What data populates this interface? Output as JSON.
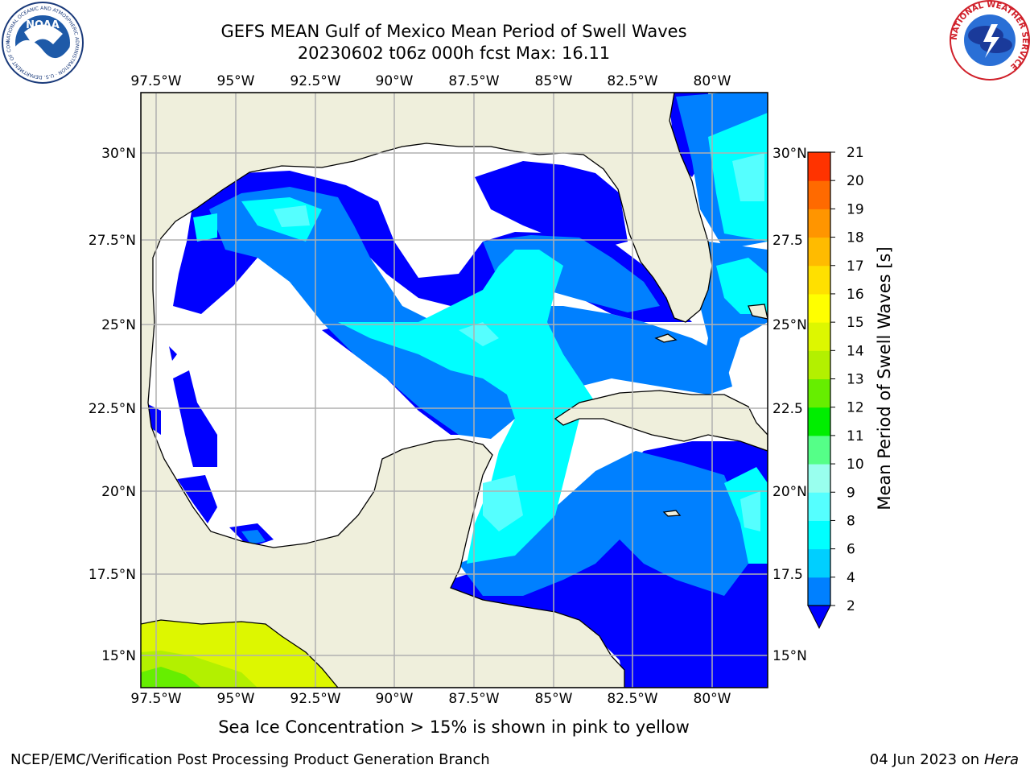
{
  "title_line1": "GEFS MEAN Gulf of Mexico Mean Period of Swell Waves",
  "title_line2": "20230602 t06z 000h fcst   Max: 16.11",
  "lon_labels": [
    "97.5°W",
    "95°W",
    "92.5°W",
    "90°W",
    "87.5°W",
    "85°W",
    "82.5°W",
    "80°W"
  ],
  "lat_labels_left": [
    "30°N",
    "27.5°N",
    "25°N",
    "22.5°N",
    "20°N",
    "17.5°N",
    "15°N"
  ],
  "lat_labels_right": [
    "30°N",
    "27.5",
    "25°N",
    "22.5",
    "20°N",
    "17.5",
    "15°N"
  ],
  "colorbar": {
    "label": "Mean Period of Swell Waves [s]",
    "ticks": [
      "2",
      "4",
      "6",
      "8",
      "9",
      "10",
      "11",
      "12",
      "13",
      "14",
      "15",
      "16",
      "17",
      "18",
      "19",
      "20",
      "21"
    ],
    "colors": [
      "#0080ff",
      "#00cfff",
      "#00ffff",
      "#55ffff",
      "#99ffee",
      "#55ff88",
      "#00ee00",
      "#66ee00",
      "#b3f000",
      "#ddf700",
      "#ffff00",
      "#ffe000",
      "#ffbb00",
      "#ff9500",
      "#ff6a00",
      "#ff3300",
      "#ff0000"
    ],
    "under_color": "#0000ff"
  },
  "footer_note": "Sea Ice Concentration > 15% is shown in pink to yellow",
  "credit_left": "NCEP/EMC/Verification Post Processing Product Generation Branch",
  "credit_date": "04 Jun 2023 on",
  "credit_host": "Hera",
  "logos": {
    "noaa_text": "NOAA",
    "noaa_ring_text": "NATIONAL OCEANIC AND ATMOSPHERIC ADMINISTRATION · U.S. DEPARTMENT OF COMMERCE",
    "nws_ring_text": "NATIONAL WEATHER SERVICE"
  }
}
